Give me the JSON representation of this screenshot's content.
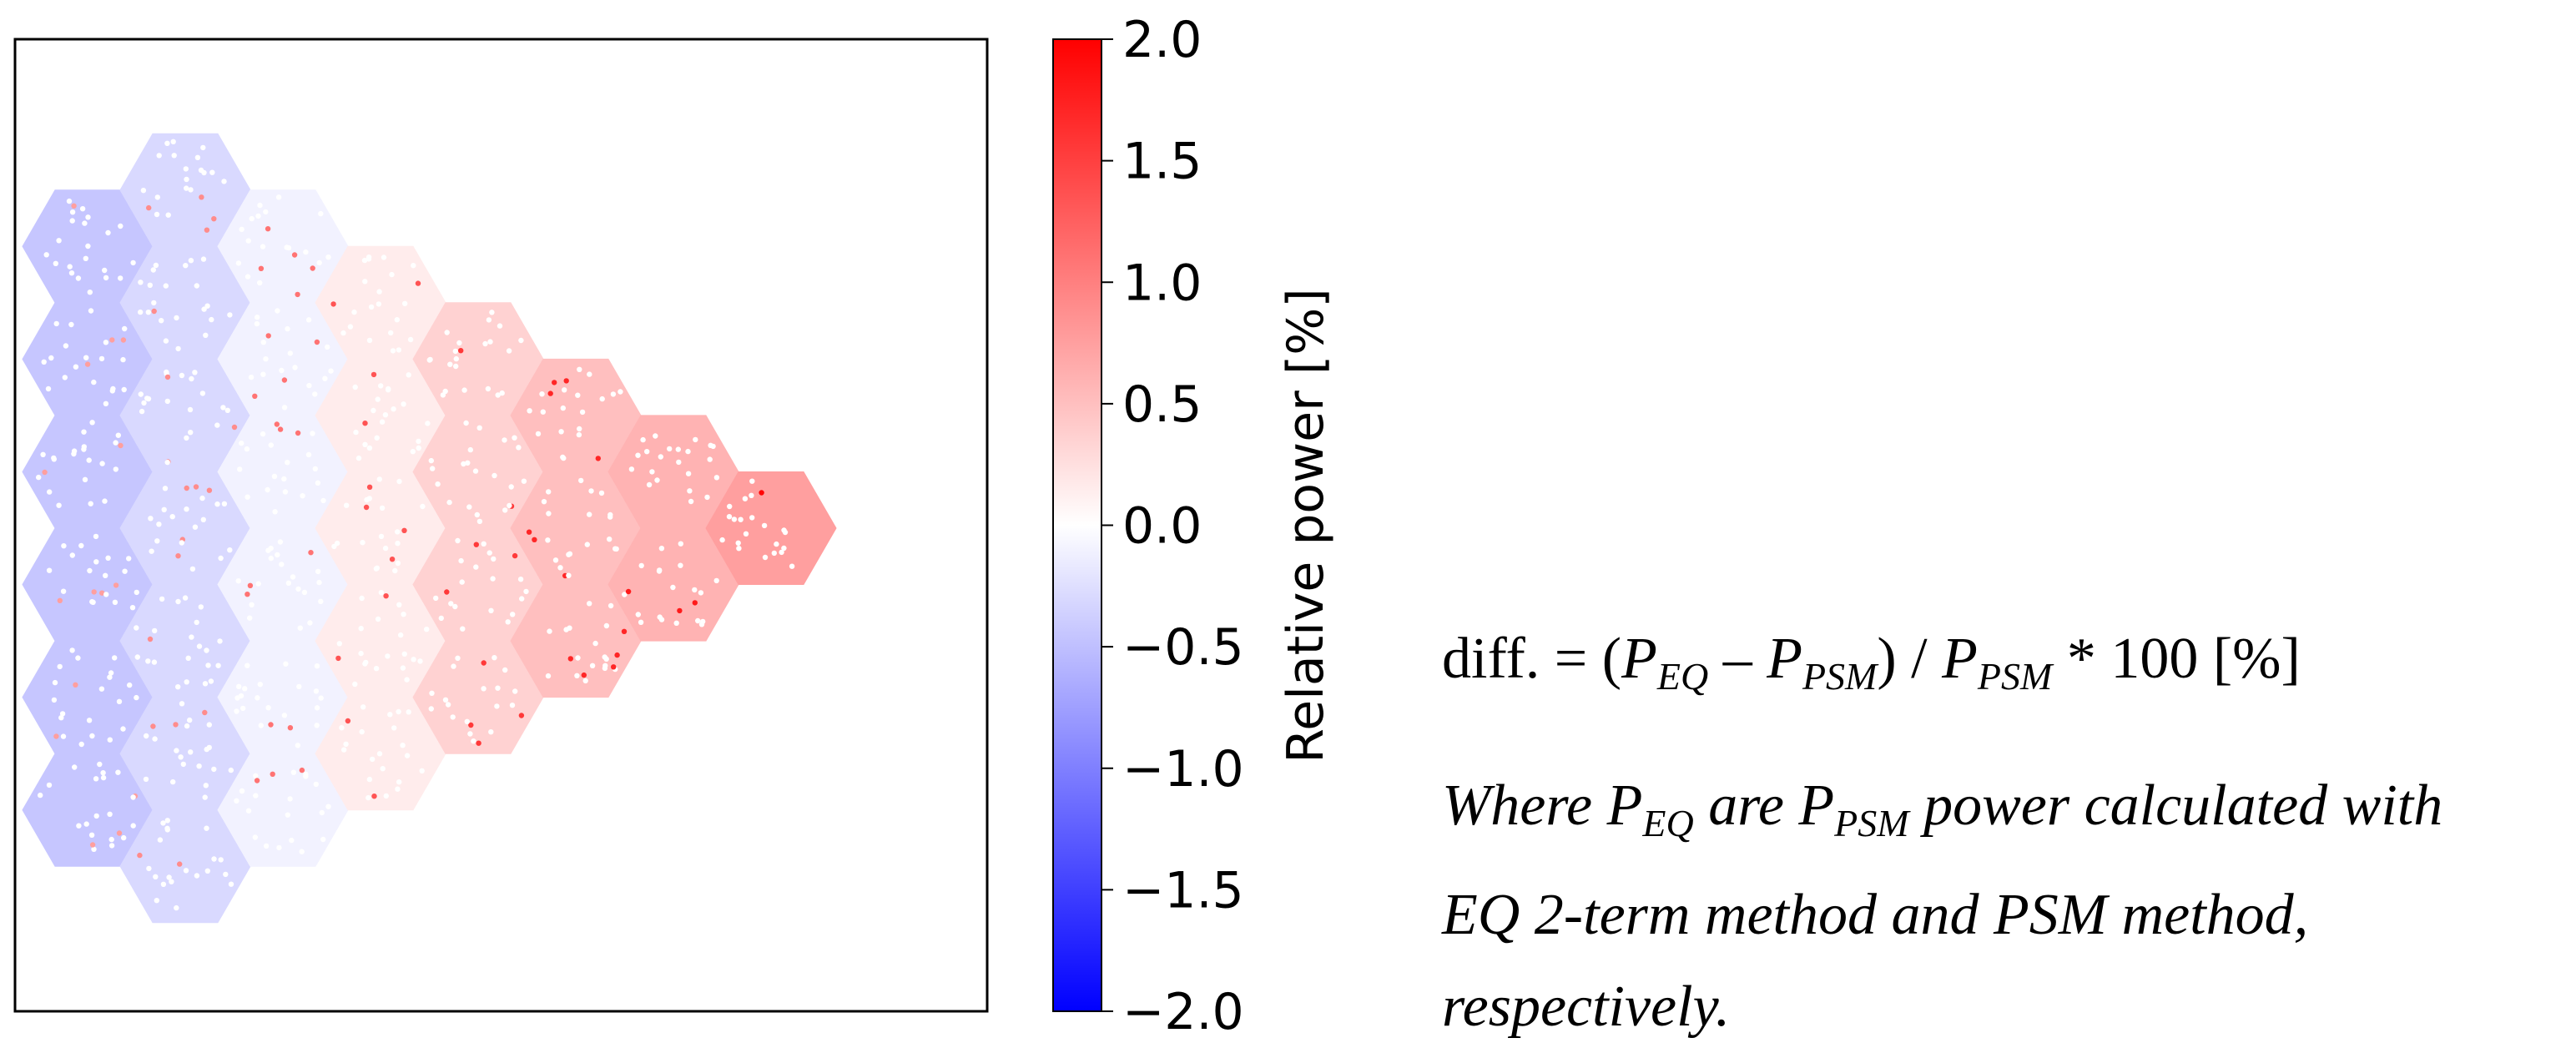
{
  "chart_data": {
    "type": "heatmap",
    "title": "",
    "description_of_content": "Hexagonal assembly map of relative power difference, blue (negative) on left assemblies to red (positive) on right assemblies",
    "assembly_columns": [
      {
        "column": 1,
        "assemblies": 6,
        "approx_value": -0.45
      },
      {
        "column": 2,
        "assemblies": 7,
        "approx_value": -0.3
      },
      {
        "column": 3,
        "assemblies": 6,
        "approx_value": -0.1
      },
      {
        "column": 4,
        "assemblies": 5,
        "approx_value": 0.15
      },
      {
        "column": 5,
        "assemblies": 4,
        "approx_value": 0.35
      },
      {
        "column": 6,
        "assemblies": 3,
        "approx_value": 0.5
      },
      {
        "column": 7,
        "assemblies": 2,
        "approx_value": 0.6
      },
      {
        "column": 8,
        "assemblies": 1,
        "approx_value": 0.75
      }
    ],
    "colorbar": {
      "label": "Relative power [%]",
      "range": [
        -2.0,
        2.0
      ],
      "ticks": [
        "2.0",
        "1.5",
        "1.0",
        "0.5",
        "0.0",
        "−0.5",
        "−1.0",
        "−1.5",
        "−2.0"
      ],
      "tick_values": [
        2.0,
        1.5,
        1.0,
        0.5,
        0.0,
        -0.5,
        -1.0,
        -1.5,
        -2.0
      ],
      "colormap": "bwr",
      "colors": {
        "low": "#0000ff",
        "mid": "#ffffff",
        "high": "#ff0000"
      }
    }
  },
  "formula": {
    "lhs": "diff. = (",
    "p1": "P",
    "p1_sub": "EQ",
    "minus": " – ",
    "p2": "P",
    "p2_sub": "PSM",
    "mid": ") / ",
    "p3": "P",
    "p3_sub": "PSM",
    "rhs": " * 100 [%]"
  },
  "note": {
    "where": "Where ",
    "p1": "P",
    "p1_sub": "EQ",
    "are": " are ",
    "p2": "P",
    "p2_sub": "PSM",
    "line1_end": " power calculated with",
    "line2": "EQ 2-term method and PSM method,",
    "line3": "respectively."
  }
}
